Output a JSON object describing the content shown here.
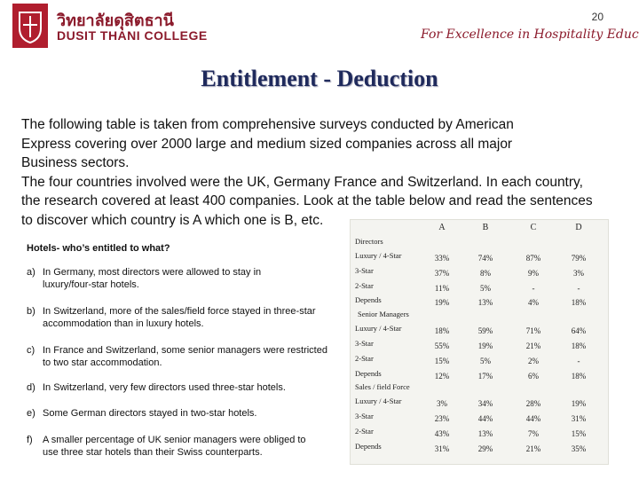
{
  "header": {
    "thai": "วิทยาลัยดุสิตธานี",
    "college": "DUSIT THANI COLLEGE",
    "page": "20",
    "tagline": "For Excellence in Hospitality Education"
  },
  "title": "Entitlement - Deduction",
  "paragraphs": [
    [
      "The following table is taken from comprehensive surveys conducted by American",
      "Express covering over 2000 large and medium sized companies across all major",
      "Business sectors."
    ],
    [
      "The four countries involved were the UK, Germany France and Switzerland. In each country,",
      "the research covered at least 400 companies. Look at the table below and read the sentences",
      "to discover which country is A  which one is B, etc."
    ]
  ],
  "questions": {
    "heading": "Hotels- who’s entitled to what?",
    "items": [
      {
        "letter": "a)",
        "lines": [
          "In Germany, most directors were allowed to stay in",
          "luxury/four-star hotels."
        ]
      },
      {
        "letter": "b)",
        "lines": [
          "In Switzerland, more of the sales/field force stayed in three-star",
          "accommodation than in luxury hotels."
        ]
      },
      {
        "letter": "c)",
        "lines": [
          "In France and Switzerland, some senior managers were restricted",
          "to two star accommodation."
        ]
      },
      {
        "letter": "d)",
        "lines": [
          "In Switzerland, very few directors used three-star hotels."
        ]
      },
      {
        "letter": "e)",
        "lines": [
          "Some German directors stayed in two-star hotels."
        ]
      },
      {
        "letter": "f)",
        "lines": [
          "A smaller percentage of UK senior managers were obliged to",
          "use three star hotels than their Swiss counterparts."
        ]
      }
    ]
  },
  "table": {
    "columns": [
      "A",
      "B",
      "C",
      "D"
    ],
    "groups": [
      {
        "name": "Directors",
        "rows": [
          {
            "label": "Luxury / 4-Star",
            "cells": [
              "33%",
              "74%",
              "87%",
              "79%"
            ]
          },
          {
            "label": "3-Star",
            "cells": [
              "37%",
              "8%",
              "9%",
              "3%"
            ]
          },
          {
            "label": "2-Star",
            "cells": [
              "11%",
              "5%",
              "-",
              "-"
            ]
          },
          {
            "label": "Depends",
            "cells": [
              "19%",
              "13%",
              "4%",
              "18%"
            ]
          }
        ]
      },
      {
        "name": "Senior Managers",
        "rows": [
          {
            "label": "Luxury / 4-Star",
            "cells": [
              "18%",
              "59%",
              "71%",
              "64%"
            ]
          },
          {
            "label": "3-Star",
            "cells": [
              "55%",
              "19%",
              "21%",
              "18%"
            ]
          },
          {
            "label": "2-Star",
            "cells": [
              "15%",
              "5%",
              "2%",
              "-"
            ]
          },
          {
            "label": "Depends",
            "cells": [
              "12%",
              "17%",
              "6%",
              "18%"
            ]
          }
        ]
      },
      {
        "name": "Sales / field Force",
        "rows": [
          {
            "label": "Luxury / 4-Star",
            "cells": [
              "3%",
              "34%",
              "28%",
              "19%"
            ]
          },
          {
            "label": "3-Star",
            "cells": [
              "23%",
              "44%",
              "44%",
              "31%"
            ]
          },
          {
            "label": "2-Star",
            "cells": [
              "43%",
              "13%",
              "7%",
              "15%"
            ]
          },
          {
            "label": "Depends",
            "cells": [
              "31%",
              "29%",
              "21%",
              "35%"
            ]
          }
        ]
      }
    ]
  }
}
